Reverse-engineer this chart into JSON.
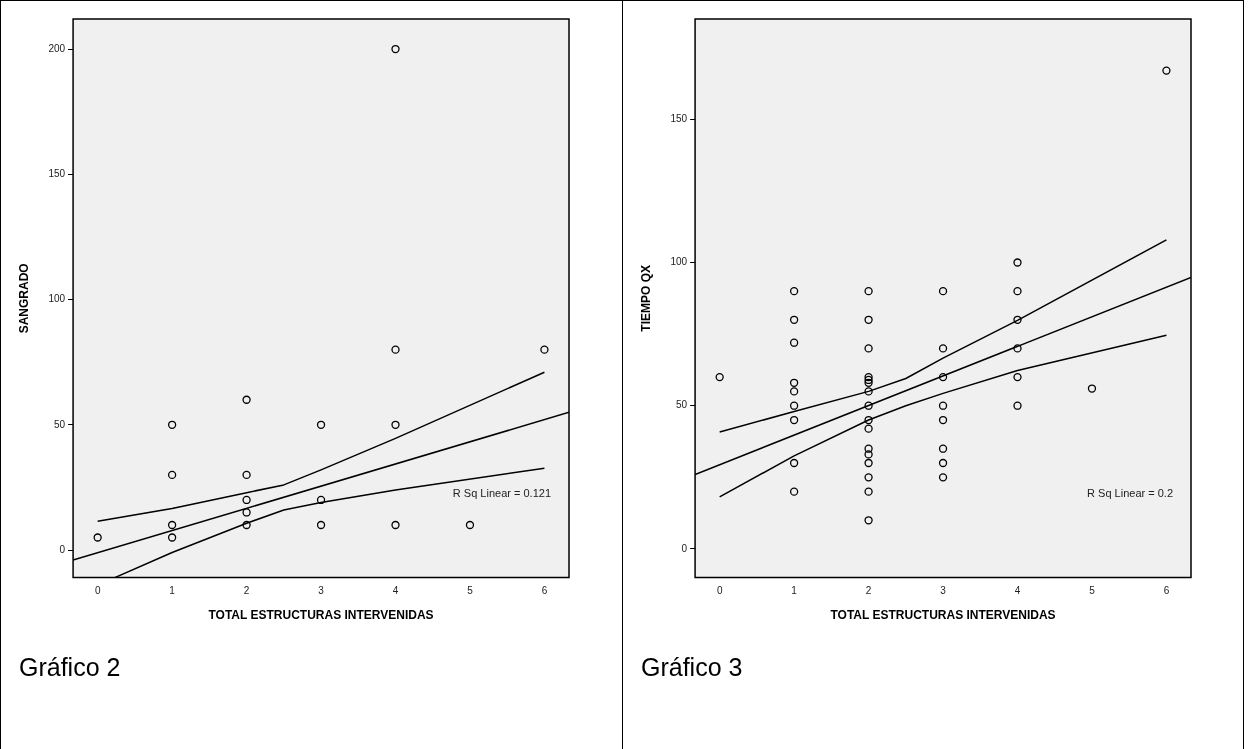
{
  "chart_data": [
    {
      "type": "scatter",
      "xlabel": "TOTAL ESTRUCTURAS INTERVENIDAS",
      "ylabel": "SANGRADO",
      "xlim": [
        -0.33,
        6.33
      ],
      "ylim": [
        -11,
        212
      ],
      "xticks": [
        0,
        1,
        2,
        3,
        4,
        5,
        6
      ],
      "yticks": [
        0,
        50,
        100,
        150,
        200
      ],
      "annotations": [
        "R Sq Linear = 0.121",
        "Gráfico 2"
      ],
      "series": [
        {
          "type": "scatter",
          "marker": "circle",
          "color": "#000000",
          "x": [
            0,
            1,
            1,
            1,
            1,
            2,
            2,
            2,
            2,
            2,
            3,
            3,
            3,
            4,
            4,
            4,
            4,
            5,
            6
          ],
          "values": [
            5,
            50,
            30,
            10,
            5,
            60,
            30,
            20,
            15,
            10,
            50,
            20,
            10,
            200,
            80,
            50,
            10,
            10,
            80
          ]
        },
        {
          "type": "line",
          "marker": "none",
          "color": "#000000",
          "x": [
            -0.33,
            6.33
          ],
          "values": [
            -4,
            55
          ]
        },
        {
          "type": "line",
          "marker": "none",
          "color": "#000000",
          "x": [
            0,
            1,
            2,
            2.5,
            3,
            4,
            6
          ],
          "values": [
            11.5,
            16.6,
            22.9,
            26,
            32,
            44.6,
            71
          ]
        },
        {
          "type": "line",
          "marker": "none",
          "color": "#000000",
          "x": [
            0.23,
            1,
            2,
            2.5,
            3,
            4,
            6
          ],
          "values": [
            -11,
            -1,
            10.7,
            16,
            19,
            24,
            32.7
          ]
        }
      ]
    },
    {
      "type": "scatter",
      "xlabel": "TOTAL ESTRUCTURAS INTERVENIDAS",
      "ylabel": "TIEMPO QX",
      "xlim": [
        -0.33,
        6.33
      ],
      "ylim": [
        -10,
        185
      ],
      "xticks": [
        0,
        1,
        2,
        3,
        4,
        5,
        6
      ],
      "yticks": [
        0,
        50,
        100,
        150
      ],
      "annotations": [
        "R Sq Linear = 0.2",
        "Gráfico 3"
      ],
      "series": [
        {
          "type": "scatter",
          "marker": "circle",
          "color": "#000000",
          "x": [
            0,
            1,
            1,
            1,
            1,
            1,
            1,
            1,
            1,
            1,
            2,
            2,
            2,
            2,
            2,
            2,
            2,
            2,
            2,
            2,
            2,
            2,
            2,
            2,
            2,
            2,
            3,
            3,
            3,
            3,
            3,
            3,
            3,
            3,
            4,
            4,
            4,
            4,
            4,
            4,
            5,
            6
          ],
          "values": [
            60,
            90,
            80,
            72,
            58,
            55,
            50,
            45,
            30,
            20,
            90,
            80,
            70,
            60,
            59,
            58,
            55,
            50,
            45,
            42,
            35,
            33,
            30,
            25,
            20,
            10,
            90,
            70,
            60,
            50,
            45,
            35,
            30,
            25,
            100,
            90,
            80,
            70,
            60,
            50,
            56,
            167
          ]
        },
        {
          "type": "line",
          "marker": "none",
          "color": "#000000",
          "x": [
            -0.33,
            6.33
          ],
          "values": [
            26,
            94.8
          ]
        },
        {
          "type": "line",
          "marker": "none",
          "color": "#000000",
          "x": [
            0,
            1,
            2,
            2.5,
            3,
            4,
            6
          ],
          "values": [
            40.8,
            48,
            55,
            59.5,
            66.6,
            79.8,
            107.9
          ]
        },
        {
          "type": "line",
          "marker": "none",
          "color": "#000000",
          "x": [
            0,
            1,
            2,
            2.5,
            3,
            4,
            6
          ],
          "values": [
            18.2,
            32.5,
            45,
            50,
            54.3,
            62.3,
            74.6
          ]
        }
      ]
    }
  ]
}
